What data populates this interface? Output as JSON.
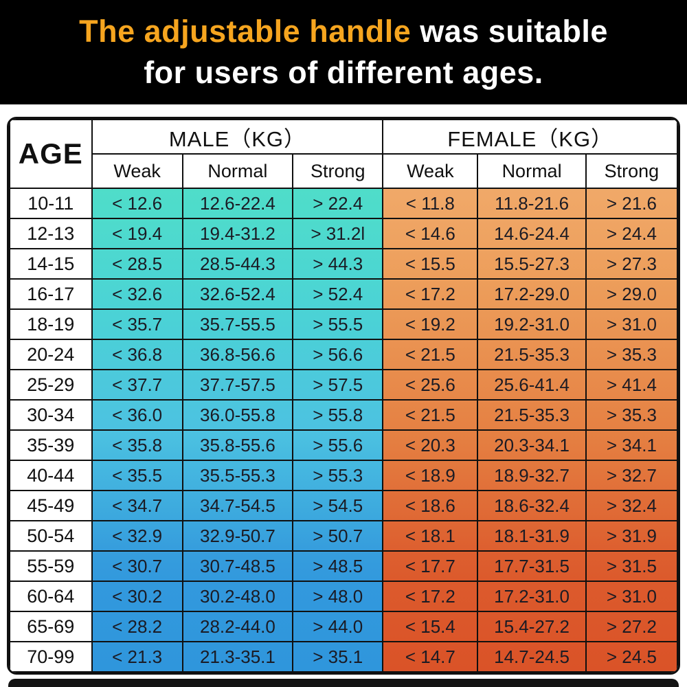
{
  "title": {
    "highlight": "The adjustable handle",
    "rest": " was suitable",
    "line2": "for users of different ages.",
    "highlight_color": "#F6A51F",
    "text_color": "#FFFFFF",
    "bg_color": "#000000"
  },
  "chart_data": {
    "type": "table",
    "title": "The adjustable handle was suitable for users of different ages.",
    "age_header": "AGE",
    "col_groups": [
      {
        "label": "MALE（KG）",
        "sub": [
          "Weak",
          "Normal",
          "Strong"
        ]
      },
      {
        "label": "FEMALE（KG）",
        "sub": [
          "Weak",
          "Normal",
          "Strong"
        ]
      }
    ],
    "male_gradient_stops": [
      {
        "pos": 0.0,
        "color": "#4FDDC9"
      },
      {
        "pos": 0.22,
        "color": "#4BD5D3"
      },
      {
        "pos": 0.5,
        "color": "#4CC2E1"
      },
      {
        "pos": 0.78,
        "color": "#3399DD"
      },
      {
        "pos": 1.0,
        "color": "#2F96DC"
      }
    ],
    "female_gradient_stops": [
      {
        "pos": 0.0,
        "color": "#F0A969"
      },
      {
        "pos": 0.22,
        "color": "#EC9C59"
      },
      {
        "pos": 0.5,
        "color": "#E58143"
      },
      {
        "pos": 0.78,
        "color": "#DC5B2D"
      },
      {
        "pos": 1.0,
        "color": "#DA5328"
      }
    ],
    "rows": [
      {
        "age": "10-11",
        "male": [
          "< 12.6",
          "12.6-22.4",
          "> 22.4"
        ],
        "female": [
          "< 11.8",
          "11.8-21.6",
          "> 21.6"
        ]
      },
      {
        "age": "12-13",
        "male": [
          "< 19.4",
          "19.4-31.2",
          "> 31.2l"
        ],
        "female": [
          "< 14.6",
          "14.6-24.4",
          "> 24.4"
        ]
      },
      {
        "age": "14-15",
        "male": [
          "< 28.5",
          "28.5-44.3",
          "> 44.3"
        ],
        "female": [
          "< 15.5",
          "15.5-27.3",
          "> 27.3"
        ]
      },
      {
        "age": "16-17",
        "male": [
          "< 32.6",
          "32.6-52.4",
          "> 52.4"
        ],
        "female": [
          "< 17.2",
          "17.2-29.0",
          "> 29.0"
        ]
      },
      {
        "age": "18-19",
        "male": [
          "< 35.7",
          "35.7-55.5",
          "> 55.5"
        ],
        "female": [
          "< 19.2",
          "19.2-31.0",
          "> 31.0"
        ]
      },
      {
        "age": "20-24",
        "male": [
          "< 36.8",
          "36.8-56.6",
          "> 56.6"
        ],
        "female": [
          "< 21.5",
          "21.5-35.3",
          "> 35.3"
        ]
      },
      {
        "age": "25-29",
        "male": [
          "< 37.7",
          "37.7-57.5",
          "> 57.5"
        ],
        "female": [
          "< 25.6",
          "25.6-41.4",
          "> 41.4"
        ]
      },
      {
        "age": "30-34",
        "male": [
          "< 36.0",
          "36.0-55.8",
          "> 55.8"
        ],
        "female": [
          "< 21.5",
          "21.5-35.3",
          "> 35.3"
        ]
      },
      {
        "age": "35-39",
        "male": [
          "< 35.8",
          "35.8-55.6",
          "> 55.6"
        ],
        "female": [
          "< 20.3",
          "20.3-34.1",
          "> 34.1"
        ]
      },
      {
        "age": "40-44",
        "male": [
          "< 35.5",
          "35.5-55.3",
          "> 55.3"
        ],
        "female": [
          "< 18.9",
          "18.9-32.7",
          "> 32.7"
        ]
      },
      {
        "age": "45-49",
        "male": [
          "< 34.7",
          "34.7-54.5",
          "> 54.5"
        ],
        "female": [
          "< 18.6",
          "18.6-32.4",
          "> 32.4"
        ]
      },
      {
        "age": "50-54",
        "male": [
          "< 32.9",
          "32.9-50.7",
          "> 50.7"
        ],
        "female": [
          "< 18.1",
          "18.1-31.9",
          "> 31.9"
        ]
      },
      {
        "age": "55-59",
        "male": [
          "< 30.7",
          "30.7-48.5",
          "> 48.5"
        ],
        "female": [
          "< 17.7",
          "17.7-31.5",
          "> 31.5"
        ]
      },
      {
        "age": "60-64",
        "male": [
          "< 30.2",
          "30.2-48.0",
          "> 48.0"
        ],
        "female": [
          "< 17.2",
          "17.2-31.0",
          "> 31.0"
        ]
      },
      {
        "age": "65-69",
        "male": [
          "< 28.2",
          "28.2-44.0",
          "> 44.0"
        ],
        "female": [
          "< 15.4",
          "15.4-27.2",
          "> 27.2"
        ]
      },
      {
        "age": "70-99",
        "male": [
          "< 21.3",
          "21.3-35.1",
          "> 35.1"
        ],
        "female": [
          "< 14.7",
          "14.7-24.5",
          "> 24.5"
        ]
      }
    ]
  }
}
